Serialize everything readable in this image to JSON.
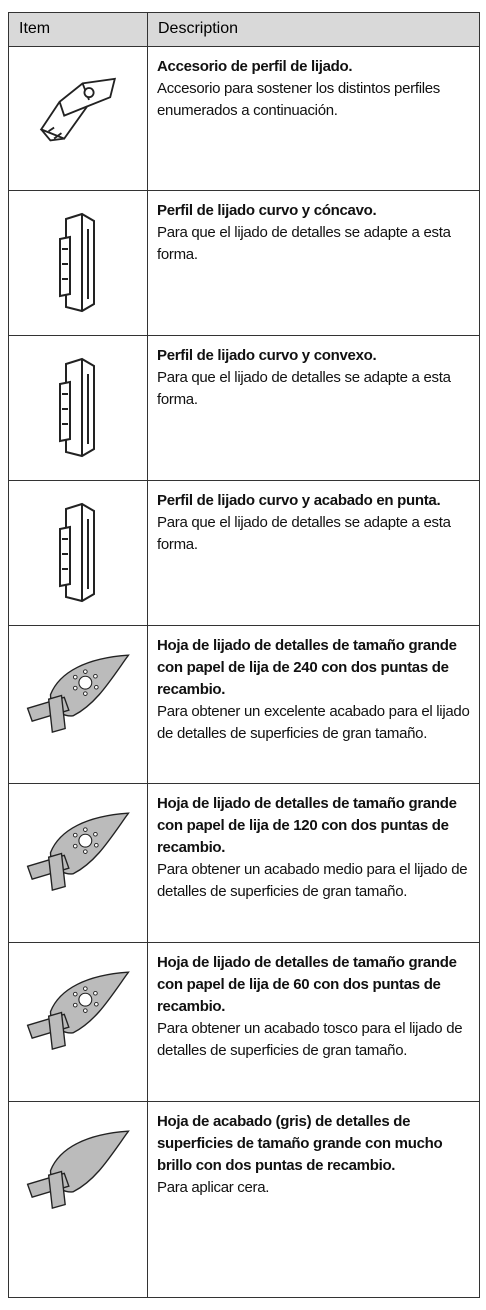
{
  "table": {
    "columns": [
      "Item",
      "Description"
    ],
    "rows": [
      {
        "title": "Accesorio de perfil de lijado.",
        "description": "Accesorio para sostener los distintos perfiles enumerados a continuación."
      },
      {
        "title": "Perfil de lijado curvo y cóncavo.",
        "description": "Para que el lijado de detalles se adapte a esta forma."
      },
      {
        "title": "Perfil de lijado curvo y convexo.",
        "description": "Para que el lijado de detalles se adapte a esta forma."
      },
      {
        "title": "Perfil de lijado curvo y acabado en punta.",
        "description": "Para que el lijado de detalles se adapte a esta forma."
      },
      {
        "title": "Hoja de lijado de detalles de tamaño grande con papel de lija de 240 con dos puntas de recambio.",
        "description": "Para obtener un excelente acabado para el lijado de detalles de superficies de gran tamaño."
      },
      {
        "title": "Hoja de lijado de detalles de tamaño grande con papel de lija de 120 con dos puntas de recambio.",
        "description": "Para obtener un acabado medio para el lijado de detalles de superficies de gran tamaño."
      },
      {
        "title": "Hoja de lijado de detalles de tamaño grande con papel de lija de 60 con dos puntas de recambio.",
        "description": "Para obtener un acabado tosco para el lijado de detalles de superficies de gran tamaño."
      },
      {
        "title": "Hoja de acabado (gris) de detalles de superficies de tamaño grande con mucho brillo con dos puntas de recambio.",
        "description": "Para aplicar cera."
      }
    ]
  }
}
